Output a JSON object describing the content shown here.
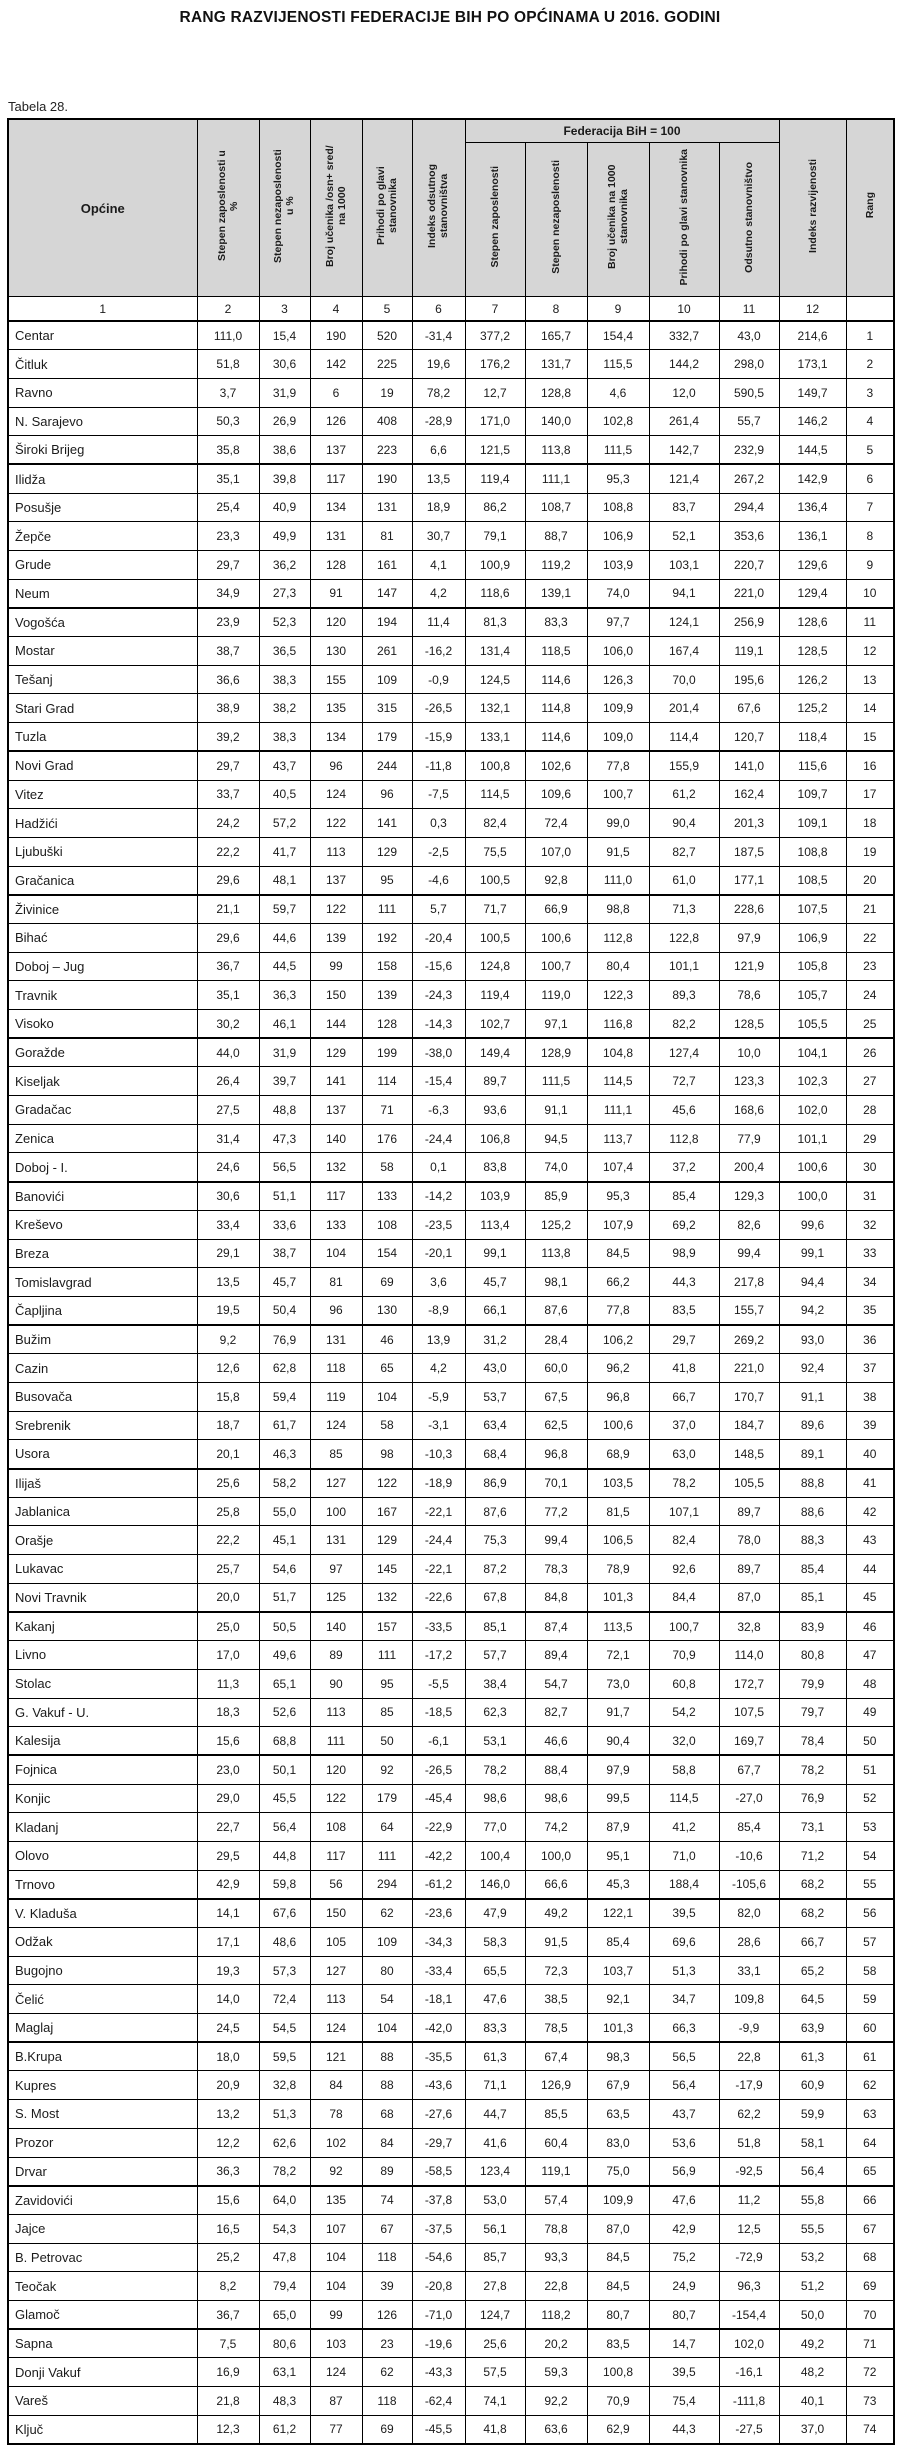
{
  "page": {
    "title": "RANG RAZVIJENOSTI FEDERACIJE BIH PO OPĆINAMA U 2016. GODINI",
    "table_label": "Tabela 28."
  },
  "table": {
    "header": {
      "municipality": "Općine",
      "standalone_columns": [
        "Stepen zaposlenosti u %",
        "Stepen nezaposlenosti u %",
        "Broj učenika /osn+ sred/ na 1000",
        "Prihodi po glavi stanovnika",
        "Indeks odsutnog stanovništva"
      ],
      "group_label": "Federacija BiH = 100",
      "group_columns": [
        "Stepen zaposlenosti",
        "Stepen nezaposlenosti",
        "Broj učenika na 1000 stanovnika",
        "Prihodi po glavi stanovnika",
        "Odsutno stanovništvo"
      ],
      "trailing_columns": [
        "Indeks razvijenosti",
        "Rang"
      ],
      "column_numbers": [
        "1",
        "2",
        "3",
        "4",
        "5",
        "6",
        "7",
        "8",
        "9",
        "10",
        "11",
        "12",
        ""
      ]
    },
    "rows": [
      [
        "Centar",
        "111,0",
        "15,4",
        "190",
        "520",
        "-31,4",
        "377,2",
        "165,7",
        "154,4",
        "332,7",
        "43,0",
        "214,6",
        "1"
      ],
      [
        "Čitluk",
        "51,8",
        "30,6",
        "142",
        "225",
        "19,6",
        "176,2",
        "131,7",
        "115,5",
        "144,2",
        "298,0",
        "173,1",
        "2"
      ],
      [
        "Ravno",
        "3,7",
        "31,9",
        "6",
        "19",
        "78,2",
        "12,7",
        "128,8",
        "4,6",
        "12,0",
        "590,5",
        "149,7",
        "3"
      ],
      [
        "N. Sarajevo",
        "50,3",
        "26,9",
        "126",
        "408",
        "-28,9",
        "171,0",
        "140,0",
        "102,8",
        "261,4",
        "55,7",
        "146,2",
        "4"
      ],
      [
        "Široki Brijeg",
        "35,8",
        "38,6",
        "137",
        "223",
        "6,6",
        "121,5",
        "113,8",
        "111,5",
        "142,7",
        "232,9",
        "144,5",
        "5"
      ],
      [
        "Ilidža",
        "35,1",
        "39,8",
        "117",
        "190",
        "13,5",
        "119,4",
        "111,1",
        "95,3",
        "121,4",
        "267,2",
        "142,9",
        "6"
      ],
      [
        "Posušje",
        "25,4",
        "40,9",
        "134",
        "131",
        "18,9",
        "86,2",
        "108,7",
        "108,8",
        "83,7",
        "294,4",
        "136,4",
        "7"
      ],
      [
        "Žepče",
        "23,3",
        "49,9",
        "131",
        "81",
        "30,7",
        "79,1",
        "88,7",
        "106,9",
        "52,1",
        "353,6",
        "136,1",
        "8"
      ],
      [
        "Grude",
        "29,7",
        "36,2",
        "128",
        "161",
        "4,1",
        "100,9",
        "119,2",
        "103,9",
        "103,1",
        "220,7",
        "129,6",
        "9"
      ],
      [
        "Neum",
        "34,9",
        "27,3",
        "91",
        "147",
        "4,2",
        "118,6",
        "139,1",
        "74,0",
        "94,1",
        "221,0",
        "129,4",
        "10"
      ],
      [
        "Vogošća",
        "23,9",
        "52,3",
        "120",
        "194",
        "11,4",
        "81,3",
        "83,3",
        "97,7",
        "124,1",
        "256,9",
        "128,6",
        "11"
      ],
      [
        "Mostar",
        "38,7",
        "36,5",
        "130",
        "261",
        "-16,2",
        "131,4",
        "118,5",
        "106,0",
        "167,4",
        "119,1",
        "128,5",
        "12"
      ],
      [
        "Tešanj",
        "36,6",
        "38,3",
        "155",
        "109",
        "-0,9",
        "124,5",
        "114,6",
        "126,3",
        "70,0",
        "195,6",
        "126,2",
        "13"
      ],
      [
        "Stari Grad",
        "38,9",
        "38,2",
        "135",
        "315",
        "-26,5",
        "132,1",
        "114,8",
        "109,9",
        "201,4",
        "67,6",
        "125,2",
        "14"
      ],
      [
        "Tuzla",
        "39,2",
        "38,3",
        "134",
        "179",
        "-15,9",
        "133,1",
        "114,6",
        "109,0",
        "114,4",
        "120,7",
        "118,4",
        "15"
      ],
      [
        "Novi Grad",
        "29,7",
        "43,7",
        "96",
        "244",
        "-11,8",
        "100,8",
        "102,6",
        "77,8",
        "155,9",
        "141,0",
        "115,6",
        "16"
      ],
      [
        "Vitez",
        "33,7",
        "40,5",
        "124",
        "96",
        "-7,5",
        "114,5",
        "109,6",
        "100,7",
        "61,2",
        "162,4",
        "109,7",
        "17"
      ],
      [
        "Hadžići",
        "24,2",
        "57,2",
        "122",
        "141",
        "0,3",
        "82,4",
        "72,4",
        "99,0",
        "90,4",
        "201,3",
        "109,1",
        "18"
      ],
      [
        "Ljubuški",
        "22,2",
        "41,7",
        "113",
        "129",
        "-2,5",
        "75,5",
        "107,0",
        "91,5",
        "82,7",
        "187,5",
        "108,8",
        "19"
      ],
      [
        "Gračanica",
        "29,6",
        "48,1",
        "137",
        "95",
        "-4,6",
        "100,5",
        "92,8",
        "111,0",
        "61,0",
        "177,1",
        "108,5",
        "20"
      ],
      [
        "Živinice",
        "21,1",
        "59,7",
        "122",
        "111",
        "5,7",
        "71,7",
        "66,9",
        "98,8",
        "71,3",
        "228,6",
        "107,5",
        "21"
      ],
      [
        "Bihać",
        "29,6",
        "44,6",
        "139",
        "192",
        "-20,4",
        "100,5",
        "100,6",
        "112,8",
        "122,8",
        "97,9",
        "106,9",
        "22"
      ],
      [
        "Doboj – Jug",
        "36,7",
        "44,5",
        "99",
        "158",
        "-15,6",
        "124,8",
        "100,7",
        "80,4",
        "101,1",
        "121,9",
        "105,8",
        "23"
      ],
      [
        "Travnik",
        "35,1",
        "36,3",
        "150",
        "139",
        "-24,3",
        "119,4",
        "119,0",
        "122,3",
        "89,3",
        "78,6",
        "105,7",
        "24"
      ],
      [
        "Visoko",
        "30,2",
        "46,1",
        "144",
        "128",
        "-14,3",
        "102,7",
        "97,1",
        "116,8",
        "82,2",
        "128,5",
        "105,5",
        "25"
      ],
      [
        "Goražde",
        "44,0",
        "31,9",
        "129",
        "199",
        "-38,0",
        "149,4",
        "128,9",
        "104,8",
        "127,4",
        "10,0",
        "104,1",
        "26"
      ],
      [
        "Kiseljak",
        "26,4",
        "39,7",
        "141",
        "114",
        "-15,4",
        "89,7",
        "111,5",
        "114,5",
        "72,7",
        "123,3",
        "102,3",
        "27"
      ],
      [
        "Gradačac",
        "27,5",
        "48,8",
        "137",
        "71",
        "-6,3",
        "93,6",
        "91,1",
        "111,1",
        "45,6",
        "168,6",
        "102,0",
        "28"
      ],
      [
        "Zenica",
        "31,4",
        "47,3",
        "140",
        "176",
        "-24,4",
        "106,8",
        "94,5",
        "113,7",
        "112,8",
        "77,9",
        "101,1",
        "29"
      ],
      [
        "Doboj - I.",
        "24,6",
        "56,5",
        "132",
        "58",
        "0,1",
        "83,8",
        "74,0",
        "107,4",
        "37,2",
        "200,4",
        "100,6",
        "30"
      ],
      [
        "Banovići",
        "30,6",
        "51,1",
        "117",
        "133",
        "-14,2",
        "103,9",
        "85,9",
        "95,3",
        "85,4",
        "129,3",
        "100,0",
        "31"
      ],
      [
        "Kreševo",
        "33,4",
        "33,6",
        "133",
        "108",
        "-23,5",
        "113,4",
        "125,2",
        "107,9",
        "69,2",
        "82,6",
        "99,6",
        "32"
      ],
      [
        "Breza",
        "29,1",
        "38,7",
        "104",
        "154",
        "-20,1",
        "99,1",
        "113,8",
        "84,5",
        "98,9",
        "99,4",
        "99,1",
        "33"
      ],
      [
        "Tomislavgrad",
        "13,5",
        "45,7",
        "81",
        "69",
        "3,6",
        "45,7",
        "98,1",
        "66,2",
        "44,3",
        "217,8",
        "94,4",
        "34"
      ],
      [
        "Čapljina",
        "19,5",
        "50,4",
        "96",
        "130",
        "-8,9",
        "66,1",
        "87,6",
        "77,8",
        "83,5",
        "155,7",
        "94,2",
        "35"
      ],
      [
        "Bužim",
        "9,2",
        "76,9",
        "131",
        "46",
        "13,9",
        "31,2",
        "28,4",
        "106,2",
        "29,7",
        "269,2",
        "93,0",
        "36"
      ],
      [
        "Cazin",
        "12,6",
        "62,8",
        "118",
        "65",
        "4,2",
        "43,0",
        "60,0",
        "96,2",
        "41,8",
        "221,0",
        "92,4",
        "37"
      ],
      [
        "Busovača",
        "15,8",
        "59,4",
        "119",
        "104",
        "-5,9",
        "53,7",
        "67,5",
        "96,8",
        "66,7",
        "170,7",
        "91,1",
        "38"
      ],
      [
        "Srebrenik",
        "18,7",
        "61,7",
        "124",
        "58",
        "-3,1",
        "63,4",
        "62,5",
        "100,6",
        "37,0",
        "184,7",
        "89,6",
        "39"
      ],
      [
        "Usora",
        "20,1",
        "46,3",
        "85",
        "98",
        "-10,3",
        "68,4",
        "96,8",
        "68,9",
        "63,0",
        "148,5",
        "89,1",
        "40"
      ],
      [
        "Ilijaš",
        "25,6",
        "58,2",
        "127",
        "122",
        "-18,9",
        "86,9",
        "70,1",
        "103,5",
        "78,2",
        "105,5",
        "88,8",
        "41"
      ],
      [
        "Jablanica",
        "25,8",
        "55,0",
        "100",
        "167",
        "-22,1",
        "87,6",
        "77,2",
        "81,5",
        "107,1",
        "89,7",
        "88,6",
        "42"
      ],
      [
        "Orašje",
        "22,2",
        "45,1",
        "131",
        "129",
        "-24,4",
        "75,3",
        "99,4",
        "106,5",
        "82,4",
        "78,0",
        "88,3",
        "43"
      ],
      [
        "Lukavac",
        "25,7",
        "54,6",
        "97",
        "145",
        "-22,1",
        "87,2",
        "78,3",
        "78,9",
        "92,6",
        "89,7",
        "85,4",
        "44"
      ],
      [
        "Novi Travnik",
        "20,0",
        "51,7",
        "125",
        "132",
        "-22,6",
        "67,8",
        "84,8",
        "101,3",
        "84,4",
        "87,0",
        "85,1",
        "45"
      ],
      [
        "Kakanj",
        "25,0",
        "50,5",
        "140",
        "157",
        "-33,5",
        "85,1",
        "87,4",
        "113,5",
        "100,7",
        "32,8",
        "83,9",
        "46"
      ],
      [
        "Livno",
        "17,0",
        "49,6",
        "89",
        "111",
        "-17,2",
        "57,7",
        "89,4",
        "72,1",
        "70,9",
        "114,0",
        "80,8",
        "47"
      ],
      [
        "Stolac",
        "11,3",
        "65,1",
        "90",
        "95",
        "-5,5",
        "38,4",
        "54,7",
        "73,0",
        "60,8",
        "172,7",
        "79,9",
        "48"
      ],
      [
        "G. Vakuf - U.",
        "18,3",
        "52,6",
        "113",
        "85",
        "-18,5",
        "62,3",
        "82,7",
        "91,7",
        "54,2",
        "107,5",
        "79,7",
        "49"
      ],
      [
        "Kalesija",
        "15,6",
        "68,8",
        "111",
        "50",
        "-6,1",
        "53,1",
        "46,6",
        "90,4",
        "32,0",
        "169,7",
        "78,4",
        "50"
      ],
      [
        "Fojnica",
        "23,0",
        "50,1",
        "120",
        "92",
        "-26,5",
        "78,2",
        "88,4",
        "97,9",
        "58,8",
        "67,7",
        "78,2",
        "51"
      ],
      [
        "Konjic",
        "29,0",
        "45,5",
        "122",
        "179",
        "-45,4",
        "98,6",
        "98,6",
        "99,5",
        "114,5",
        "-27,0",
        "76,9",
        "52"
      ],
      [
        "Kladanj",
        "22,7",
        "56,4",
        "108",
        "64",
        "-22,9",
        "77,0",
        "74,2",
        "87,9",
        "41,2",
        "85,4",
        "73,1",
        "53"
      ],
      [
        "Olovo",
        "29,5",
        "44,8",
        "117",
        "111",
        "-42,2",
        "100,4",
        "100,0",
        "95,1",
        "71,0",
        "-10,6",
        "71,2",
        "54"
      ],
      [
        "Trnovo",
        "42,9",
        "59,8",
        "56",
        "294",
        "-61,2",
        "146,0",
        "66,6",
        "45,3",
        "188,4",
        "-105,6",
        "68,2",
        "55"
      ],
      [
        "V. Kladuša",
        "14,1",
        "67,6",
        "150",
        "62",
        "-23,6",
        "47,9",
        "49,2",
        "122,1",
        "39,5",
        "82,0",
        "68,2",
        "56"
      ],
      [
        "Odžak",
        "17,1",
        "48,6",
        "105",
        "109",
        "-34,3",
        "58,3",
        "91,5",
        "85,4",
        "69,6",
        "28,6",
        "66,7",
        "57"
      ],
      [
        "Bugojno",
        "19,3",
        "57,3",
        "127",
        "80",
        "-33,4",
        "65,5",
        "72,3",
        "103,7",
        "51,3",
        "33,1",
        "65,2",
        "58"
      ],
      [
        "Čelić",
        "14,0",
        "72,4",
        "113",
        "54",
        "-18,1",
        "47,6",
        "38,5",
        "92,1",
        "34,7",
        "109,8",
        "64,5",
        "59"
      ],
      [
        "Maglaj",
        "24,5",
        "54,5",
        "124",
        "104",
        "-42,0",
        "83,3",
        "78,5",
        "101,3",
        "66,3",
        "-9,9",
        "63,9",
        "60"
      ],
      [
        "B.Krupa",
        "18,0",
        "59,5",
        "121",
        "88",
        "-35,5",
        "61,3",
        "67,4",
        "98,3",
        "56,5",
        "22,8",
        "61,3",
        "61"
      ],
      [
        "Kupres",
        "20,9",
        "32,8",
        "84",
        "88",
        "-43,6",
        "71,1",
        "126,9",
        "67,9",
        "56,4",
        "-17,9",
        "60,9",
        "62"
      ],
      [
        "S. Most",
        "13,2",
        "51,3",
        "78",
        "68",
        "-27,6",
        "44,7",
        "85,5",
        "63,5",
        "43,7",
        "62,2",
        "59,9",
        "63"
      ],
      [
        "Prozor",
        "12,2",
        "62,6",
        "102",
        "84",
        "-29,7",
        "41,6",
        "60,4",
        "83,0",
        "53,6",
        "51,8",
        "58,1",
        "64"
      ],
      [
        "Drvar",
        "36,3",
        "78,2",
        "92",
        "89",
        "-58,5",
        "123,4",
        "119,1",
        "75,0",
        "56,9",
        "-92,5",
        "56,4",
        "65"
      ],
      [
        "Zavidovići",
        "15,6",
        "64,0",
        "135",
        "74",
        "-37,8",
        "53,0",
        "57,4",
        "109,9",
        "47,6",
        "11,2",
        "55,8",
        "66"
      ],
      [
        "Jajce",
        "16,5",
        "54,3",
        "107",
        "67",
        "-37,5",
        "56,1",
        "78,8",
        "87,0",
        "42,9",
        "12,5",
        "55,5",
        "67"
      ],
      [
        "B. Petrovac",
        "25,2",
        "47,8",
        "104",
        "118",
        "-54,6",
        "85,7",
        "93,3",
        "84,5",
        "75,2",
        "-72,9",
        "53,2",
        "68"
      ],
      [
        "Teočak",
        "8,2",
        "79,4",
        "104",
        "39",
        "-20,8",
        "27,8",
        "22,8",
        "84,5",
        "24,9",
        "96,3",
        "51,2",
        "69"
      ],
      [
        "Glamoč",
        "36,7",
        "65,0",
        "99",
        "126",
        "-71,0",
        "124,7",
        "118,2",
        "80,7",
        "80,7",
        "-154,4",
        "50,0",
        "70"
      ],
      [
        "Sapna",
        "7,5",
        "80,6",
        "103",
        "23",
        "-19,6",
        "25,6",
        "20,2",
        "83,5",
        "14,7",
        "102,0",
        "49,2",
        "71"
      ],
      [
        "Donji Vakuf",
        "16,9",
        "63,1",
        "124",
        "62",
        "-43,3",
        "57,5",
        "59,3",
        "100,8",
        "39,5",
        "-16,1",
        "48,2",
        "72"
      ],
      [
        "Vareš",
        "21,8",
        "48,3",
        "87",
        "118",
        "-62,4",
        "74,1",
        "92,2",
        "70,9",
        "75,4",
        "-111,8",
        "40,1",
        "73"
      ],
      [
        "Ključ",
        "12,3",
        "61,2",
        "77",
        "69",
        "-45,5",
        "41,8",
        "63,6",
        "62,9",
        "44,3",
        "-27,5",
        "37,0",
        "74"
      ]
    ]
  }
}
